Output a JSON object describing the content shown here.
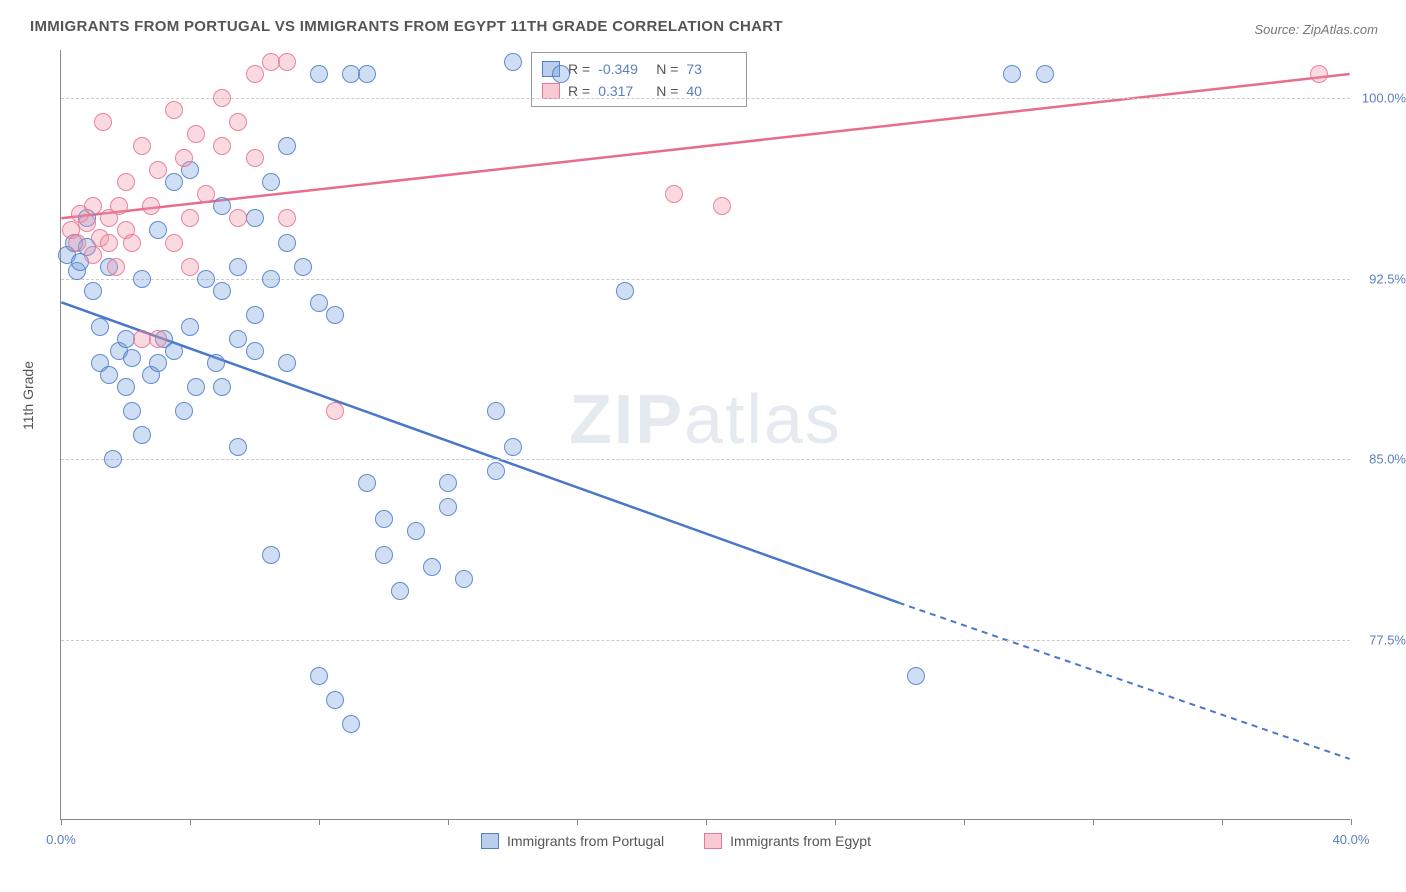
{
  "title": "IMMIGRANTS FROM PORTUGAL VS IMMIGRANTS FROM EGYPT 11TH GRADE CORRELATION CHART",
  "source_label": "Source: ",
  "source_name": "ZipAtlas.com",
  "watermark_a": "ZIP",
  "watermark_b": "atlas",
  "ylabel": "11th Grade",
  "chart": {
    "type": "scatter",
    "xlim": [
      0,
      40
    ],
    "ylim": [
      70,
      102
    ],
    "xticks": [
      0,
      4,
      8,
      12,
      16,
      20,
      24,
      28,
      32,
      36,
      40
    ],
    "xtick_labels": {
      "0": "0.0%",
      "40": "40.0%"
    },
    "yticks": [
      77.5,
      85.0,
      92.5,
      100.0
    ],
    "ytick_labels": [
      "77.5%",
      "85.0%",
      "92.5%",
      "100.0%"
    ],
    "grid_color": "#cccccc",
    "background_color": "#ffffff",
    "marker_size": 18,
    "series": [
      {
        "name": "Immigrants from Portugal",
        "color_fill": "rgba(120,160,220,0.35)",
        "color_stroke": "#4a78c8",
        "r": "-0.349",
        "n": "73",
        "trend": {
          "x1": 0,
          "y1": 91.5,
          "x2": 26,
          "y2": 79.0,
          "dash_after_x": 26,
          "x2_dash": 40,
          "y2_dash": 72.5,
          "width": 2.5
        },
        "points": [
          [
            0.2,
            93.5
          ],
          [
            0.4,
            94.0
          ],
          [
            0.5,
            92.8
          ],
          [
            0.6,
            93.2
          ],
          [
            0.8,
            93.8
          ],
          [
            0.8,
            95.0
          ],
          [
            1.0,
            92.0
          ],
          [
            1.2,
            89.0
          ],
          [
            1.2,
            90.5
          ],
          [
            1.5,
            88.5
          ],
          [
            1.5,
            93.0
          ],
          [
            1.6,
            85.0
          ],
          [
            1.8,
            89.5
          ],
          [
            2.0,
            88.0
          ],
          [
            2.0,
            90.0
          ],
          [
            2.2,
            87.0
          ],
          [
            2.2,
            89.2
          ],
          [
            2.5,
            86.0
          ],
          [
            2.5,
            92.5
          ],
          [
            2.8,
            88.5
          ],
          [
            3.0,
            89.0
          ],
          [
            3.0,
            94.5
          ],
          [
            3.2,
            90.0
          ],
          [
            3.5,
            89.5
          ],
          [
            3.5,
            96.5
          ],
          [
            3.8,
            87.0
          ],
          [
            4.0,
            97.0
          ],
          [
            4.0,
            90.5
          ],
          [
            4.2,
            88.0
          ],
          [
            4.5,
            92.5
          ],
          [
            4.8,
            89.0
          ],
          [
            5.0,
            95.5
          ],
          [
            5.0,
            92.0
          ],
          [
            5.0,
            88.0
          ],
          [
            5.5,
            85.5
          ],
          [
            5.5,
            90.0
          ],
          [
            5.5,
            93.0
          ],
          [
            6.0,
            89.5
          ],
          [
            6.0,
            91.0
          ],
          [
            6.0,
            95.0
          ],
          [
            6.5,
            96.5
          ],
          [
            6.5,
            81.0
          ],
          [
            6.5,
            92.5
          ],
          [
            7.0,
            89.0
          ],
          [
            7.0,
            94.0
          ],
          [
            7.0,
            98.0
          ],
          [
            7.5,
            93.0
          ],
          [
            8.0,
            91.5
          ],
          [
            8.0,
            101.0
          ],
          [
            8.0,
            76.0
          ],
          [
            8.5,
            91.0
          ],
          [
            8.5,
            75.0
          ],
          [
            9.0,
            74.0
          ],
          [
            9.0,
            101.0
          ],
          [
            9.5,
            84.0
          ],
          [
            9.5,
            101.0
          ],
          [
            10.0,
            82.5
          ],
          [
            10.0,
            81.0
          ],
          [
            10.5,
            79.5
          ],
          [
            11.0,
            82.0
          ],
          [
            11.5,
            80.5
          ],
          [
            12.0,
            84.0
          ],
          [
            12.0,
            83.0
          ],
          [
            12.5,
            80.0
          ],
          [
            13.5,
            87.0
          ],
          [
            13.5,
            84.5
          ],
          [
            14.0,
            101.5
          ],
          [
            14.0,
            85.5
          ],
          [
            15.5,
            101.0
          ],
          [
            17.5,
            92.0
          ],
          [
            26.5,
            76.0
          ],
          [
            29.5,
            101.0
          ],
          [
            30.5,
            101.0
          ]
        ]
      },
      {
        "name": "Immigrants from Egypt",
        "color_fill": "rgba(240,150,170,0.35)",
        "color_stroke": "#e66e8c",
        "r": "0.317",
        "n": "40",
        "trend": {
          "x1": 0,
          "y1": 95.0,
          "x2": 40,
          "y2": 101.0,
          "width": 2.5
        },
        "points": [
          [
            0.3,
            94.5
          ],
          [
            0.5,
            94.0
          ],
          [
            0.6,
            95.2
          ],
          [
            0.8,
            94.8
          ],
          [
            1.0,
            93.5
          ],
          [
            1.0,
            95.5
          ],
          [
            1.2,
            94.2
          ],
          [
            1.3,
            99.0
          ],
          [
            1.5,
            94.0
          ],
          [
            1.5,
            95.0
          ],
          [
            1.7,
            93.0
          ],
          [
            1.8,
            95.5
          ],
          [
            2.0,
            94.5
          ],
          [
            2.0,
            96.5
          ],
          [
            2.2,
            94.0
          ],
          [
            2.5,
            90.0
          ],
          [
            2.5,
            98.0
          ],
          [
            2.8,
            95.5
          ],
          [
            3.0,
            90.0
          ],
          [
            3.0,
            97.0
          ],
          [
            3.5,
            94.0
          ],
          [
            3.5,
            99.5
          ],
          [
            3.8,
            97.5
          ],
          [
            4.0,
            93.0
          ],
          [
            4.0,
            95.0
          ],
          [
            4.2,
            98.5
          ],
          [
            4.5,
            96.0
          ],
          [
            5.0,
            100.0
          ],
          [
            5.0,
            98.0
          ],
          [
            5.5,
            99.0
          ],
          [
            5.5,
            95.0
          ],
          [
            6.0,
            97.5
          ],
          [
            6.0,
            101.0
          ],
          [
            6.5,
            101.5
          ],
          [
            7.0,
            101.5
          ],
          [
            7.0,
            95.0
          ],
          [
            8.5,
            87.0
          ],
          [
            19.0,
            96.0
          ],
          [
            20.5,
            95.5
          ],
          [
            39.0,
            101.0
          ]
        ]
      }
    ],
    "legend_bottom": [
      "Immigrants from Portugal",
      "Immigrants from Egypt"
    ],
    "legend_r_label": "R =",
    "legend_n_label": "N ="
  }
}
